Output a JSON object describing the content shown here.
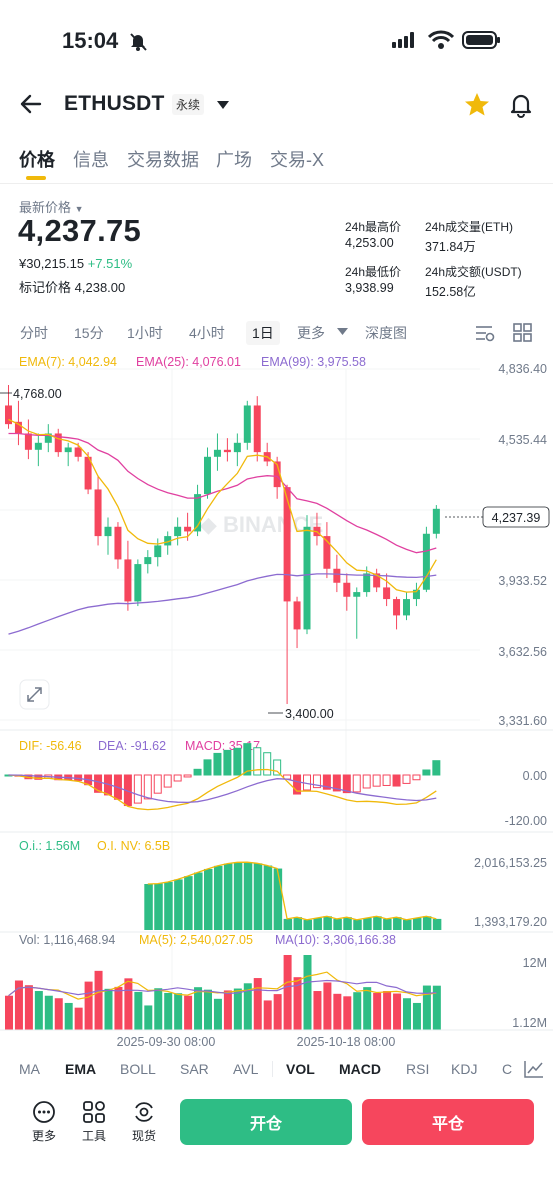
{
  "status": {
    "time": "15:04"
  },
  "header": {
    "symbol": "ETHUSDT",
    "badge": "永续"
  },
  "tabs": [
    "价格",
    "信息",
    "交易数据",
    "广场",
    "交易-X"
  ],
  "ticker": {
    "last_label": "最新价格",
    "last_price": "4,237.75",
    "cny": "¥30,215.15",
    "change": "+7.51%",
    "mark_label": "标记价格",
    "mark_price": "4,238.00",
    "high_label": "24h最高价",
    "high": "4,253.00",
    "low_label": "24h最低价",
    "low": "3,938.99",
    "vol_eth_label": "24h成交量(ETH)",
    "vol_eth": "371.84万",
    "vol_usdt_label": "24h成交额(USDT)",
    "vol_usdt": "152.58亿"
  },
  "timeframes": {
    "items": [
      "分时",
      "15分",
      "1小时",
      "4小时",
      "1日",
      "更多"
    ],
    "active": "1日",
    "depth": "深度图"
  },
  "legends": {
    "ema7": "EMA(7): 4,042.94",
    "ema25": "EMA(25): 4,076.01",
    "ema99": "EMA(99): 3,975.58",
    "dif": "DIF: -56.46",
    "dea": "DEA: -91.62",
    "macd": "MACD: 35.17",
    "oi": "O.i.: 1.56M",
    "oinv": "O.I. NV: 6.5B",
    "vol": "Vol: 1,116,468.94",
    "ma5": "MA(5): 2,540,027.05",
    "ma10": "MA(10): 3,306,166.38"
  },
  "colors": {
    "up": "#2ebd85",
    "down": "#f6465d",
    "ema7": "#f0b90b",
    "ema25": "#e040a0",
    "ema99": "#8c6bd0",
    "accent": "#f0b90b"
  },
  "indicators": {
    "items": [
      "MA",
      "EMA",
      "BOLL",
      "SAR",
      "AVL",
      "VOL",
      "MACD",
      "RSI",
      "KDJ",
      "C"
    ],
    "active": [
      "EMA",
      "VOL",
      "MACD"
    ]
  },
  "bottom": {
    "more": "更多",
    "tools": "工具",
    "spot": "现货",
    "open": "开仓",
    "close": "平仓"
  },
  "chart_data": {
    "type": "candlestick",
    "interval": "1日",
    "price_axis_ticks": [
      "4,836.40",
      "4,535.44",
      "4,237.39",
      "3,933.52",
      "3,632.56",
      "3,331.60"
    ],
    "current_price_label": "4,237.39",
    "annotations": {
      "high": "4,768.00",
      "low": "3,400.00"
    },
    "x_labels": [
      "2025-09-30 08:00",
      "2025-10-18 08:00"
    ],
    "candles": [
      {
        "o": 4680,
        "h": 4768,
        "l": 4580,
        "c": 4600
      },
      {
        "o": 4610,
        "h": 4700,
        "l": 4510,
        "c": 4560
      },
      {
        "o": 4560,
        "h": 4620,
        "l": 4450,
        "c": 4490
      },
      {
        "o": 4490,
        "h": 4560,
        "l": 4420,
        "c": 4520
      },
      {
        "o": 4520,
        "h": 4600,
        "l": 4480,
        "c": 4560
      },
      {
        "o": 4560,
        "h": 4580,
        "l": 4460,
        "c": 4480
      },
      {
        "o": 4480,
        "h": 4520,
        "l": 4420,
        "c": 4500
      },
      {
        "o": 4500,
        "h": 4520,
        "l": 4440,
        "c": 4460
      },
      {
        "o": 4460,
        "h": 4480,
        "l": 4300,
        "c": 4320
      },
      {
        "o": 4320,
        "h": 4380,
        "l": 4080,
        "c": 4120
      },
      {
        "o": 4120,
        "h": 4200,
        "l": 4040,
        "c": 4160
      },
      {
        "o": 4160,
        "h": 4180,
        "l": 3980,
        "c": 4020
      },
      {
        "o": 4020,
        "h": 4100,
        "l": 3800,
        "c": 3840
      },
      {
        "o": 3840,
        "h": 4020,
        "l": 3820,
        "c": 4000
      },
      {
        "o": 4000,
        "h": 4060,
        "l": 3960,
        "c": 4030
      },
      {
        "o": 4030,
        "h": 4110,
        "l": 3990,
        "c": 4080
      },
      {
        "o": 4080,
        "h": 4140,
        "l": 4040,
        "c": 4120
      },
      {
        "o": 4120,
        "h": 4200,
        "l": 4080,
        "c": 4160
      },
      {
        "o": 4160,
        "h": 4220,
        "l": 4100,
        "c": 4140
      },
      {
        "o": 4140,
        "h": 4340,
        "l": 4120,
        "c": 4300
      },
      {
        "o": 4300,
        "h": 4500,
        "l": 4280,
        "c": 4460
      },
      {
        "o": 4460,
        "h": 4560,
        "l": 4400,
        "c": 4490
      },
      {
        "o": 4490,
        "h": 4540,
        "l": 4440,
        "c": 4480
      },
      {
        "o": 4480,
        "h": 4560,
        "l": 4420,
        "c": 4520
      },
      {
        "o": 4520,
        "h": 4700,
        "l": 4490,
        "c": 4680
      },
      {
        "o": 4680,
        "h": 4720,
        "l": 4440,
        "c": 4480
      },
      {
        "o": 4480,
        "h": 4520,
        "l": 4420,
        "c": 4440
      },
      {
        "o": 4440,
        "h": 4460,
        "l": 4280,
        "c": 4330
      },
      {
        "o": 4330,
        "h": 4340,
        "l": 3400,
        "c": 3840
      },
      {
        "o": 3840,
        "h": 3860,
        "l": 3640,
        "c": 3720
      },
      {
        "o": 3720,
        "h": 4210,
        "l": 3700,
        "c": 4160
      },
      {
        "o": 4160,
        "h": 4220,
        "l": 4080,
        "c": 4120
      },
      {
        "o": 4120,
        "h": 4180,
        "l": 3940,
        "c": 3980
      },
      {
        "o": 3980,
        "h": 4040,
        "l": 3880,
        "c": 3920
      },
      {
        "o": 3920,
        "h": 3960,
        "l": 3800,
        "c": 3860
      },
      {
        "o": 3860,
        "h": 3900,
        "l": 3680,
        "c": 3880
      },
      {
        "o": 3880,
        "h": 3990,
        "l": 3860,
        "c": 3960
      },
      {
        "o": 3960,
        "h": 3980,
        "l": 3880,
        "c": 3900
      },
      {
        "o": 3900,
        "h": 3960,
        "l": 3820,
        "c": 3850
      },
      {
        "o": 3850,
        "h": 3860,
        "l": 3720,
        "c": 3780
      },
      {
        "o": 3780,
        "h": 3880,
        "l": 3760,
        "c": 3850
      },
      {
        "o": 3850,
        "h": 3920,
        "l": 3820,
        "c": 3890
      },
      {
        "o": 3890,
        "h": 4160,
        "l": 3880,
        "c": 4130
      },
      {
        "o": 4130,
        "h": 4253,
        "l": 4110,
        "c": 4237
      }
    ],
    "ema7": [
      4620,
      4600,
      4570,
      4555,
      4556,
      4537,
      4528,
      4510,
      4463,
      4377,
      4322,
      4247,
      4145,
      4109,
      4089,
      4086,
      4095,
      4111,
      4118,
      4163,
      4237,
      4300,
      4345,
      4389,
      4462,
      4467,
      4460,
      4427,
      4280,
      4140,
      4145,
      4139,
      4099,
      4054,
      4005,
      3974,
      3971,
      3953,
      3927,
      3890,
      3880,
      3882,
      3946,
      4019
    ],
    "ema25": [
      4560,
      4560,
      4555,
      4552,
      4552,
      4546,
      4542,
      4536,
      4519,
      4489,
      4472,
      4445,
      4398,
      4367,
      4341,
      4321,
      4306,
      4295,
      4283,
      4283,
      4297,
      4312,
      4324,
      4338,
      4365,
      4374,
      4379,
      4376,
      4328,
      4280,
      4271,
      4260,
      4239,
      4213,
      4186,
      4162,
      4146,
      4127,
      4106,
      4081,
      4063,
      4049,
      4056,
      4069
    ],
    "ema99": [
      3700,
      3712,
      3727,
      3743,
      3759,
      3775,
      3790,
      3804,
      3815,
      3821,
      3828,
      3832,
      3830,
      3833,
      3836,
      3840,
      3845,
      3851,
      3856,
      3864,
      3876,
      3888,
      3900,
      3912,
      3928,
      3939,
      3948,
      3956,
      3955,
      3950,
      3954,
      3958,
      3958,
      3957,
      3955,
      3953,
      3953,
      3951,
      3950,
      3946,
      3944,
      3943,
      3947,
      3953
    ]
  }
}
